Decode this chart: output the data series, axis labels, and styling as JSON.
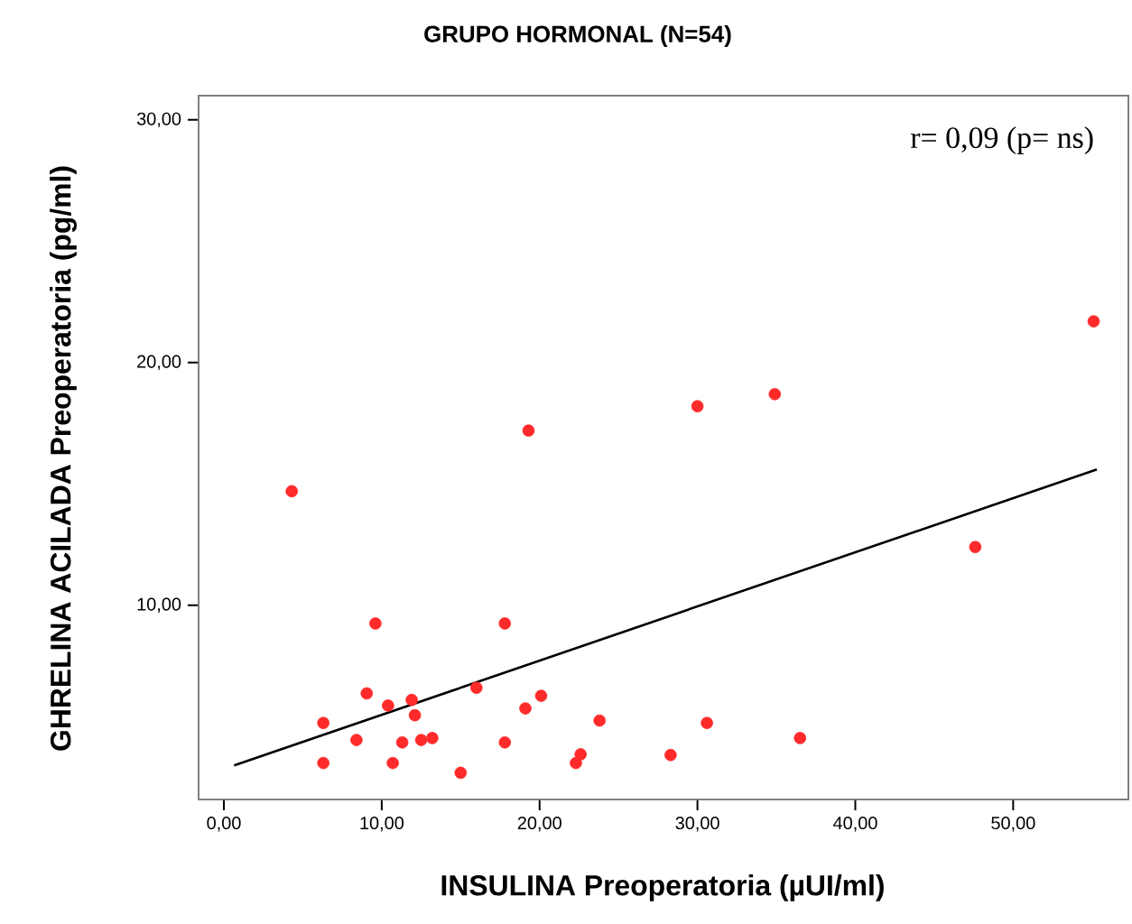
{
  "chart_data": {
    "type": "scatter",
    "title": "GRUPO HORMONAL (N=54)",
    "xlabel": "INSULINA Preoperatoria (µUI/ml)",
    "ylabel": "GHRELINA ACILADA Preoperatoria (pg/ml)",
    "annotations": [
      "r= 0,09 (p= ns)"
    ],
    "xlim": [
      -1.6,
      57.3
    ],
    "ylim": [
      2,
      31
    ],
    "xticks": [
      {
        "value": 0,
        "label": "0,00"
      },
      {
        "value": 10,
        "label": "10,00"
      },
      {
        "value": 20,
        "label": "20,00"
      },
      {
        "value": 30,
        "label": "30,00"
      },
      {
        "value": 40,
        "label": "40,00"
      },
      {
        "value": 50,
        "label": "50,00"
      }
    ],
    "yticks": [
      {
        "value": 10,
        "label": "10,00"
      },
      {
        "value": 20,
        "label": "20,00"
      },
      {
        "value": 30,
        "label": "30,00"
      }
    ],
    "grid": false,
    "series": [
      {
        "color": "#ff2a2a",
        "marker": "circle",
        "x": [
          9.6,
          17.8,
          47.6,
          9.05,
          10.4,
          11.9,
          12.1,
          6.3,
          8.4,
          11.3,
          12.5,
          13.2,
          6.3,
          10.7,
          15.0,
          16.0,
          19.1,
          20.1,
          17.8,
          23.8,
          22.6,
          22.3,
          28.3,
          30.6,
          36.5,
          4.3,
          19.3,
          30.0,
          34.9,
          55.1
        ],
        "values": [
          9.25,
          9.25,
          12.4,
          6.37,
          5.87,
          6.1,
          5.47,
          5.15,
          4.45,
          4.35,
          4.45,
          4.53,
          3.5,
          3.5,
          3.1,
          6.6,
          5.75,
          6.27,
          4.35,
          5.25,
          3.86,
          3.5,
          3.83,
          5.15,
          4.53,
          14.7,
          17.2,
          18.2,
          18.7,
          21.7
        ]
      },
      {
        "type": "line",
        "color": "#000000",
        "marker": "none",
        "line_style": "solid",
        "x": [
          0.65,
          55.3
        ],
        "values": [
          3.4,
          15.6
        ]
      }
    ]
  }
}
